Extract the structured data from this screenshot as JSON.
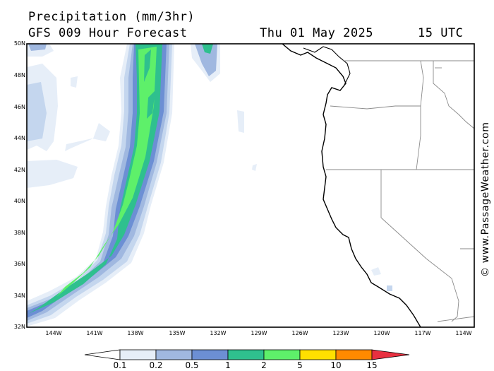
{
  "header": {
    "title": "Precipitation (mm/3hr)",
    "subtitle": "GFS 009 Hour Forecast",
    "date": "Thu 01 May 2025",
    "time": "15 UTC"
  },
  "credit": "© www.PassageWeather.com",
  "map": {
    "lat_range": [
      32,
      50
    ],
    "lon_range": [
      -146,
      -113
    ],
    "lat_labels": [
      "32N",
      "34N",
      "36N",
      "38N",
      "40N",
      "42N",
      "44N",
      "46N",
      "48N",
      "50N"
    ],
    "lon_labels": [
      "144W",
      "141W",
      "138W",
      "135W",
      "132W",
      "129W",
      "126W",
      "123W",
      "120W",
      "117W",
      "114W"
    ]
  },
  "legend": {
    "labels": [
      "0.1",
      "0.2",
      "0.5",
      "1",
      "2",
      "5",
      "10",
      "15"
    ],
    "colors": [
      "#ffffff",
      "#e6eef8",
      "#c4d6ee",
      "#a0b8e0",
      "#6c8fd4",
      "#2fc08e",
      "#5ef06a",
      "#ffe000",
      "#ff8a00",
      "#e83040"
    ]
  }
}
